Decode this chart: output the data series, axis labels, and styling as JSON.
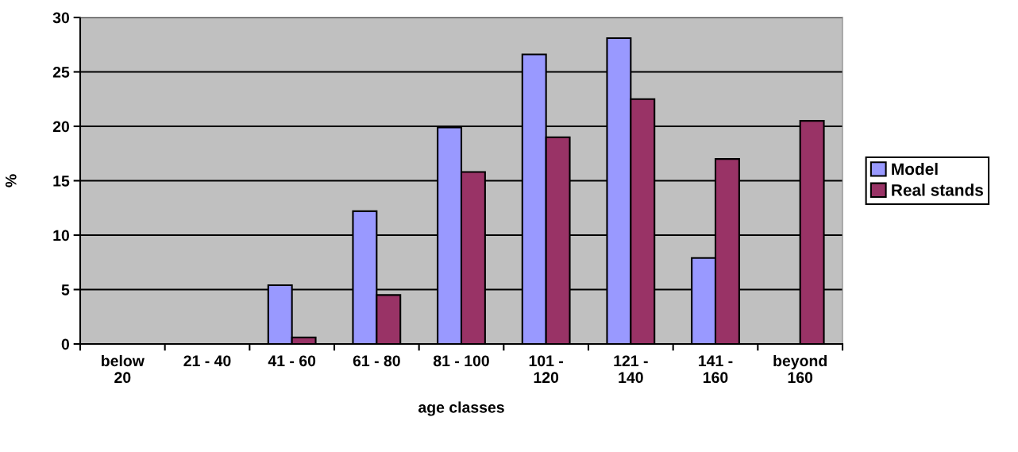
{
  "chart_data": {
    "type": "bar",
    "xlabel": "age classes",
    "ylabel": "%",
    "categories": [
      "below\n20",
      "21 - 40",
      "41 - 60",
      "61 - 80",
      "81 - 100",
      "101 -\n120",
      "121 -\n140",
      "141 -\n160",
      "beyond\n160"
    ],
    "series": [
      {
        "name": "Model",
        "color": "#9999ff",
        "values": [
          null,
          null,
          5.4,
          12.2,
          19.9,
          26.6,
          28.1,
          7.9,
          null
        ]
      },
      {
        "name": "Real stands",
        "color": "#993366",
        "values": [
          null,
          null,
          0.6,
          4.5,
          15.8,
          19,
          22.5,
          17,
          20.5
        ]
      }
    ],
    "ylim": [
      0,
      30
    ],
    "yticks": [
      0,
      5,
      10,
      15,
      20,
      25,
      30
    ],
    "grid": "y",
    "legend": "right"
  }
}
